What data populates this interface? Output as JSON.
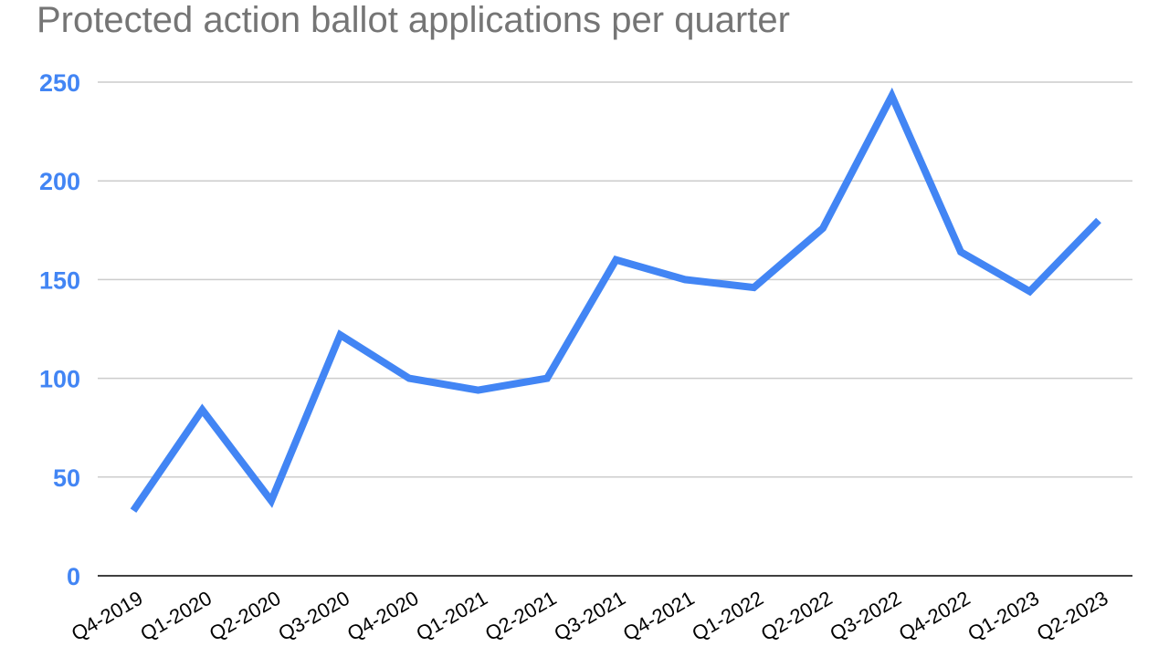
{
  "chart_data": {
    "type": "line",
    "title": "Protected action ballot applications per quarter",
    "xlabel": "",
    "ylabel": "",
    "categories": [
      "Q4-2019",
      "Q1-2020",
      "Q2-2020",
      "Q3-2020",
      "Q4-2020",
      "Q1-2021",
      "Q2-2021",
      "Q3-2021",
      "Q4-2021",
      "Q1-2022",
      "Q2-2022",
      "Q3-2022",
      "Q4-2022",
      "Q1-2023",
      "Q2-2023"
    ],
    "series": [
      {
        "values": [
          33,
          84,
          38,
          122,
          100,
          94,
          100,
          160,
          150,
          146,
          176,
          243,
          164,
          144,
          180
        ]
      }
    ],
    "ylim": [
      0,
      250
    ],
    "yticks": [
      0,
      50,
      100,
      150,
      200,
      250
    ],
    "grid": true,
    "legend": "none",
    "colors": {
      "line": "#4285f4",
      "ytick": "#4285f4",
      "grid": "#cccccc",
      "axis": "#000000",
      "title": "#757575"
    }
  }
}
